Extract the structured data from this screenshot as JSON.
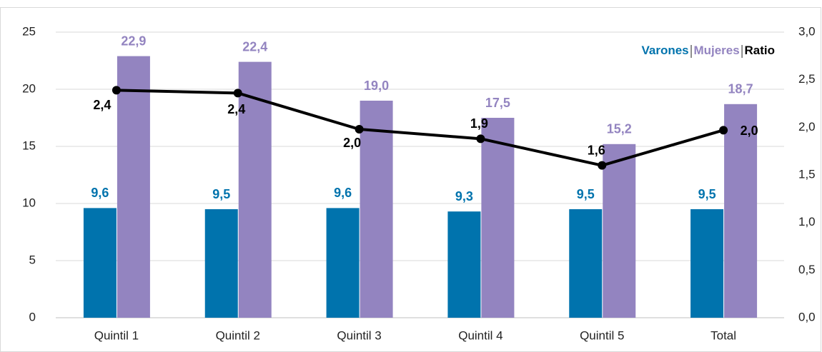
{
  "chart_data": {
    "type": "bar_line",
    "categories": [
      "Quintil 1",
      "Quintil 2",
      "Quintil 3",
      "Quintil 4",
      "Quintil 5",
      "Total"
    ],
    "series": [
      {
        "name": "Varones",
        "color": "#0073ad",
        "type": "bar",
        "values": [
          9.6,
          9.5,
          9.6,
          9.3,
          9.5,
          9.5
        ],
        "value_labels": [
          "9,6",
          "9,5",
          "9,6",
          "9,3",
          "9,5",
          "9,5"
        ]
      },
      {
        "name": "Mujeres",
        "color": "#9384c0",
        "type": "bar",
        "values": [
          22.9,
          22.4,
          19.0,
          17.5,
          15.2,
          18.7
        ],
        "value_labels": [
          "22,9",
          "22,4",
          "19,0",
          "17,5",
          "15,2",
          "18,7"
        ]
      },
      {
        "name": "Ratio",
        "color": "#000000",
        "type": "line",
        "axis": "y2",
        "values": [
          2.39,
          2.36,
          1.98,
          1.88,
          1.6,
          1.97
        ],
        "value_labels": [
          "2,4",
          "2,4",
          "2,0",
          "1,9",
          "1,6",
          "2,0"
        ]
      }
    ],
    "ylim": [
      0,
      25
    ],
    "yticks": [
      0,
      5,
      10,
      15,
      20,
      25
    ],
    "y2lim": [
      0,
      3
    ],
    "y2ticks": [
      {
        "value": 0,
        "label": "0,0"
      },
      {
        "value": 0.5,
        "label": "0,5"
      },
      {
        "value": 1,
        "label": "1,0"
      },
      {
        "value": 1.5,
        "label": "1,5"
      },
      {
        "value": 2,
        "label": "2,0"
      },
      {
        "value": 2.5,
        "label": "2,5"
      },
      {
        "value": 3,
        "label": "3,0"
      }
    ],
    "grid": true,
    "legend": "upper right"
  }
}
